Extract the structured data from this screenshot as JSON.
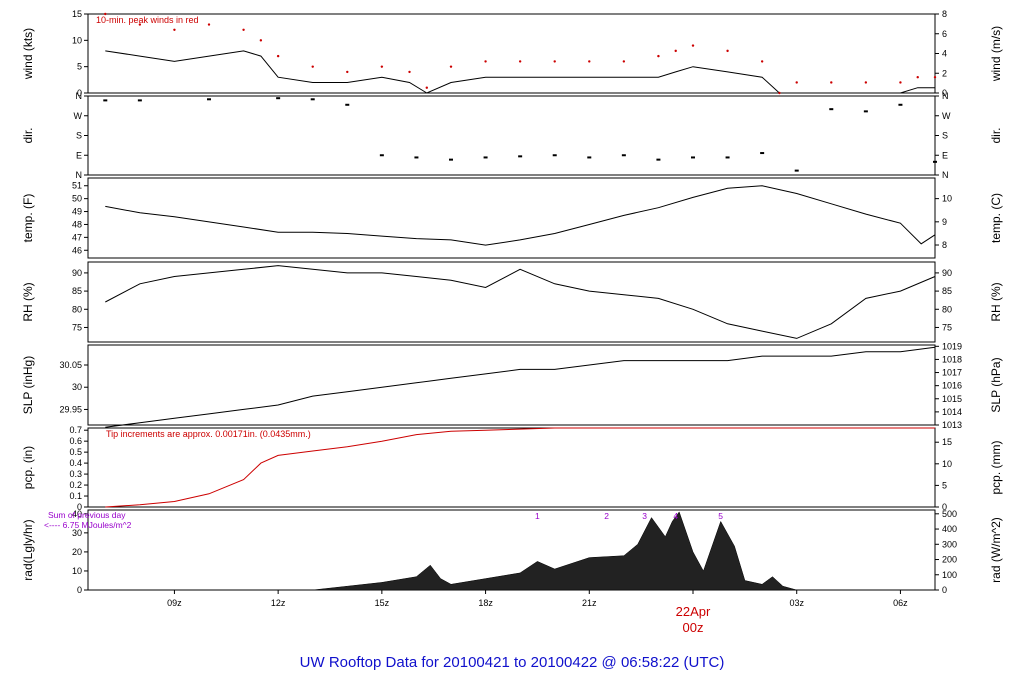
{
  "title": "UW Rooftop Data for 20100421  to  20100422 @ 06:58:22  (UTC)",
  "colors": {
    "title": "#1010cc",
    "accent": "#cc0000",
    "annot": "#9900cc",
    "line": "#000000"
  },
  "x_ticks": [
    "09z",
    "12z",
    "15z",
    "18z",
    "21z",
    "00z",
    "03z",
    "06z"
  ],
  "day_label": "22Apr",
  "day_hour": "00z",
  "chart_data": [
    {
      "type": "line",
      "ylabel_left": "wind (kts)",
      "ylabel_right": "wind (m/s)",
      "ylim": [
        0,
        15
      ],
      "left_ticks": [
        0,
        5,
        10,
        15
      ],
      "right_ticks": [
        0,
        2,
        4,
        6,
        8
      ],
      "annotation": "10-min. peak winds in red",
      "series": [
        {
          "x": [
            7,
            8,
            9,
            10,
            11,
            11.5,
            12,
            13,
            14,
            15,
            15.8,
            16.3,
            17,
            18,
            19,
            20,
            21,
            22,
            23,
            23.5,
            24,
            25,
            26,
            26.5,
            27,
            28,
            29,
            30,
            30.5,
            31
          ],
          "y": [
            8,
            7,
            6,
            7,
            8,
            7,
            3,
            2,
            2,
            3,
            2,
            0,
            2,
            3,
            3,
            3,
            3,
            3,
            3,
            4,
            5,
            4,
            3,
            0,
            0,
            0,
            0,
            0,
            1,
            1
          ]
        },
        {
          "x": [
            7,
            8,
            9,
            10,
            11,
            11.5,
            12,
            13,
            14,
            15,
            15.8,
            16.3,
            17,
            18,
            19,
            20,
            21,
            22,
            23,
            23.5,
            24,
            25,
            26,
            26.5,
            27,
            28,
            29,
            30,
            30.5,
            31
          ],
          "y": [
            15,
            13,
            12,
            13,
            12,
            10,
            7,
            5,
            4,
            5,
            4,
            1,
            5,
            6,
            6,
            6,
            6,
            6,
            7,
            8,
            9,
            8,
            6,
            0,
            2,
            2,
            2,
            2,
            3,
            3
          ]
        }
      ]
    },
    {
      "type": "scatter",
      "ylabel_left": "dir.",
      "ylabel_right": "dir.",
      "left_ticks": [
        "N",
        "E",
        "S",
        "W",
        "N"
      ],
      "right_ticks": [
        "N",
        "E",
        "S",
        "W",
        "N"
      ],
      "series": [
        {
          "x": [
            7,
            8,
            10,
            12,
            13,
            14,
            15,
            16,
            17,
            18,
            19,
            20,
            21,
            22,
            23,
            24,
            25,
            26,
            27,
            28,
            29,
            30,
            31
          ],
          "y": [
            340,
            340,
            345,
            350,
            345,
            320,
            90,
            80,
            70,
            80,
            85,
            90,
            80,
            90,
            70,
            80,
            80,
            100,
            20,
            300,
            290,
            320,
            60
          ]
        }
      ]
    },
    {
      "type": "line",
      "ylabel_left": "temp. (F)",
      "ylabel_right": "temp. (C)",
      "left_ticks": [
        46,
        47,
        48,
        49,
        50,
        51
      ],
      "right_ticks": [
        8,
        9,
        10
      ],
      "series": [
        {
          "x": [
            7,
            8,
            9,
            10,
            11,
            12,
            13,
            14,
            15,
            16,
            17,
            18,
            19,
            20,
            21,
            22,
            23,
            24,
            25,
            26,
            27,
            28,
            29,
            30,
            30.6,
            31
          ],
          "y": [
            49.4,
            48.9,
            48.6,
            48.2,
            47.8,
            47.4,
            47.4,
            47.3,
            47.1,
            46.9,
            46.8,
            46.4,
            46.8,
            47.3,
            48.0,
            48.7,
            49.3,
            50.1,
            50.8,
            51.0,
            50.4,
            49.6,
            48.8,
            48.1,
            46.5,
            47.2
          ]
        }
      ]
    },
    {
      "type": "line",
      "ylabel_left": "RH (%)",
      "ylabel_right": "RH (%)",
      "left_ticks": [
        75,
        80,
        85,
        90
      ],
      "right_ticks": [
        75,
        80,
        85,
        90
      ],
      "series": [
        {
          "x": [
            7,
            8,
            9,
            10,
            11,
            12,
            13,
            14,
            15,
            16,
            17,
            18,
            19,
            20,
            21,
            22,
            23,
            24,
            25,
            26,
            27,
            28,
            29,
            30,
            31
          ],
          "y": [
            82,
            87,
            89,
            90,
            91,
            92,
            91,
            90,
            90,
            89,
            88,
            86,
            91,
            87,
            85,
            84,
            83,
            80,
            76,
            74,
            72,
            76,
            83,
            85,
            89
          ]
        }
      ]
    },
    {
      "type": "line",
      "ylabel_left": "SLP (inHg)",
      "ylabel_right": "SLP (hPa)",
      "left_ticks": [
        29.95,
        30.0,
        30.05
      ],
      "right_ticks": [
        1013,
        1014,
        1015,
        1016,
        1017,
        1018,
        1019
      ],
      "series": [
        {
          "x": [
            7,
            8,
            9,
            10,
            11,
            12,
            13,
            14,
            15,
            16,
            17,
            18,
            19,
            20,
            21,
            22,
            23,
            24,
            25,
            26,
            27,
            28,
            29,
            30,
            31
          ],
          "y": [
            29.91,
            29.92,
            29.93,
            29.94,
            29.95,
            29.96,
            29.98,
            29.99,
            30.0,
            30.01,
            30.02,
            30.03,
            30.04,
            30.04,
            30.05,
            30.06,
            30.06,
            30.06,
            30.06,
            30.07,
            30.07,
            30.07,
            30.08,
            30.08,
            30.09
          ]
        }
      ]
    },
    {
      "type": "line",
      "ylabel_left": "pcp. (in)",
      "ylabel_right": "pcp. (mm)",
      "left_ticks": [
        0.0,
        0.1,
        0.2,
        0.3,
        0.4,
        0.5,
        0.6,
        0.7
      ],
      "right_ticks": [
        0,
        5,
        10,
        15
      ],
      "annotation": "Tip increments are approx. 0.00171in. (0.0435mm.)",
      "series": [
        {
          "x": [
            7,
            8,
            9,
            10,
            11,
            11.5,
            12,
            13,
            14,
            15,
            16,
            17,
            18,
            19,
            20,
            22,
            24,
            31
          ],
          "y": [
            0,
            0.02,
            0.05,
            0.12,
            0.25,
            0.4,
            0.47,
            0.51,
            0.55,
            0.6,
            0.66,
            0.69,
            0.7,
            0.71,
            0.72,
            0.72,
            0.72,
            0.72
          ]
        }
      ]
    },
    {
      "type": "area",
      "ylabel_left": "rad(Lgly/hr)",
      "ylabel_right": "rad (W/m^2)",
      "left_ticks": [
        0,
        10,
        20,
        30,
        40
      ],
      "right_ticks": [
        0,
        100,
        200,
        300,
        400,
        500
      ],
      "annotation_lines": [
        "Sum of previous day",
        "<---- 6.75 MJoules/m^2"
      ],
      "markers": [
        {
          "label": "1",
          "x": 19.5
        },
        {
          "label": "2",
          "x": 21.5
        },
        {
          "label": "3",
          "x": 22.6
        },
        {
          "label": "4",
          "x": 23.5
        },
        {
          "label": "5",
          "x": 24.8
        }
      ],
      "series": [
        {
          "x": [
            7,
            13,
            14,
            15,
            16,
            16.4,
            16.7,
            17,
            18,
            19,
            19.5,
            20,
            21,
            22,
            22.4,
            22.8,
            23.2,
            23.4,
            23.6,
            24,
            24.3,
            24.8,
            25.2,
            25.5,
            26,
            26.3,
            26.6,
            27
          ],
          "y": [
            0,
            0,
            2,
            4,
            7,
            13,
            6,
            3,
            6,
            9,
            15,
            11,
            17,
            18,
            24,
            38,
            28,
            36,
            41,
            20,
            10,
            36,
            23,
            5,
            3,
            7,
            2,
            0
          ]
        }
      ]
    }
  ]
}
